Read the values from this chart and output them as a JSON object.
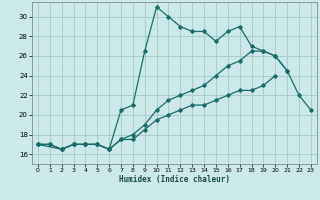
{
  "title": "",
  "xlabel": "Humidex (Indice chaleur)",
  "ylabel": "",
  "bg_color": "#cce8e8",
  "grid_color": "#aacccc",
  "line_color": "#1a6b6b",
  "xlim": [
    -0.5,
    23.5
  ],
  "ylim": [
    15.0,
    31.5
  ],
  "xticks": [
    0,
    1,
    2,
    3,
    4,
    5,
    6,
    7,
    8,
    9,
    10,
    11,
    12,
    13,
    14,
    15,
    16,
    17,
    18,
    19,
    20,
    21,
    22,
    23
  ],
  "yticks": [
    16,
    18,
    20,
    22,
    24,
    26,
    28,
    30
  ],
  "series1_x": [
    0,
    1,
    2,
    3,
    4,
    5,
    6,
    7,
    8,
    9,
    10,
    11,
    12,
    13,
    14,
    15,
    16,
    17,
    18,
    19,
    20,
    21
  ],
  "series1_y": [
    17.0,
    17.0,
    16.5,
    17.0,
    17.0,
    17.0,
    16.5,
    20.5,
    21.0,
    26.5,
    31.0,
    30.0,
    29.0,
    28.5,
    28.5,
    27.5,
    28.5,
    29.0,
    27.0,
    26.5,
    26.0,
    24.5
  ],
  "series2_x": [
    0,
    1,
    2,
    3,
    4,
    5,
    6,
    7,
    8,
    9,
    10,
    11,
    12,
    13,
    14,
    15,
    16,
    17,
    18,
    19,
    20
  ],
  "series2_y": [
    17.0,
    17.0,
    16.5,
    17.0,
    17.0,
    17.0,
    16.5,
    17.5,
    17.5,
    18.5,
    19.5,
    20.0,
    20.5,
    21.0,
    21.0,
    21.5,
    22.0,
    22.5,
    22.5,
    23.0,
    24.0
  ],
  "series3_x": [
    0,
    2,
    3,
    4,
    5,
    6,
    7,
    8,
    9,
    10,
    11,
    12,
    13,
    14,
    15,
    16,
    17,
    18,
    19,
    20,
    21,
    22,
    23
  ],
  "series3_y": [
    17.0,
    16.5,
    17.0,
    17.0,
    17.0,
    16.5,
    17.5,
    18.0,
    19.0,
    20.5,
    21.5,
    22.0,
    22.5,
    23.0,
    24.0,
    25.0,
    25.5,
    26.5,
    26.5,
    26.0,
    24.5,
    22.0,
    20.5
  ]
}
